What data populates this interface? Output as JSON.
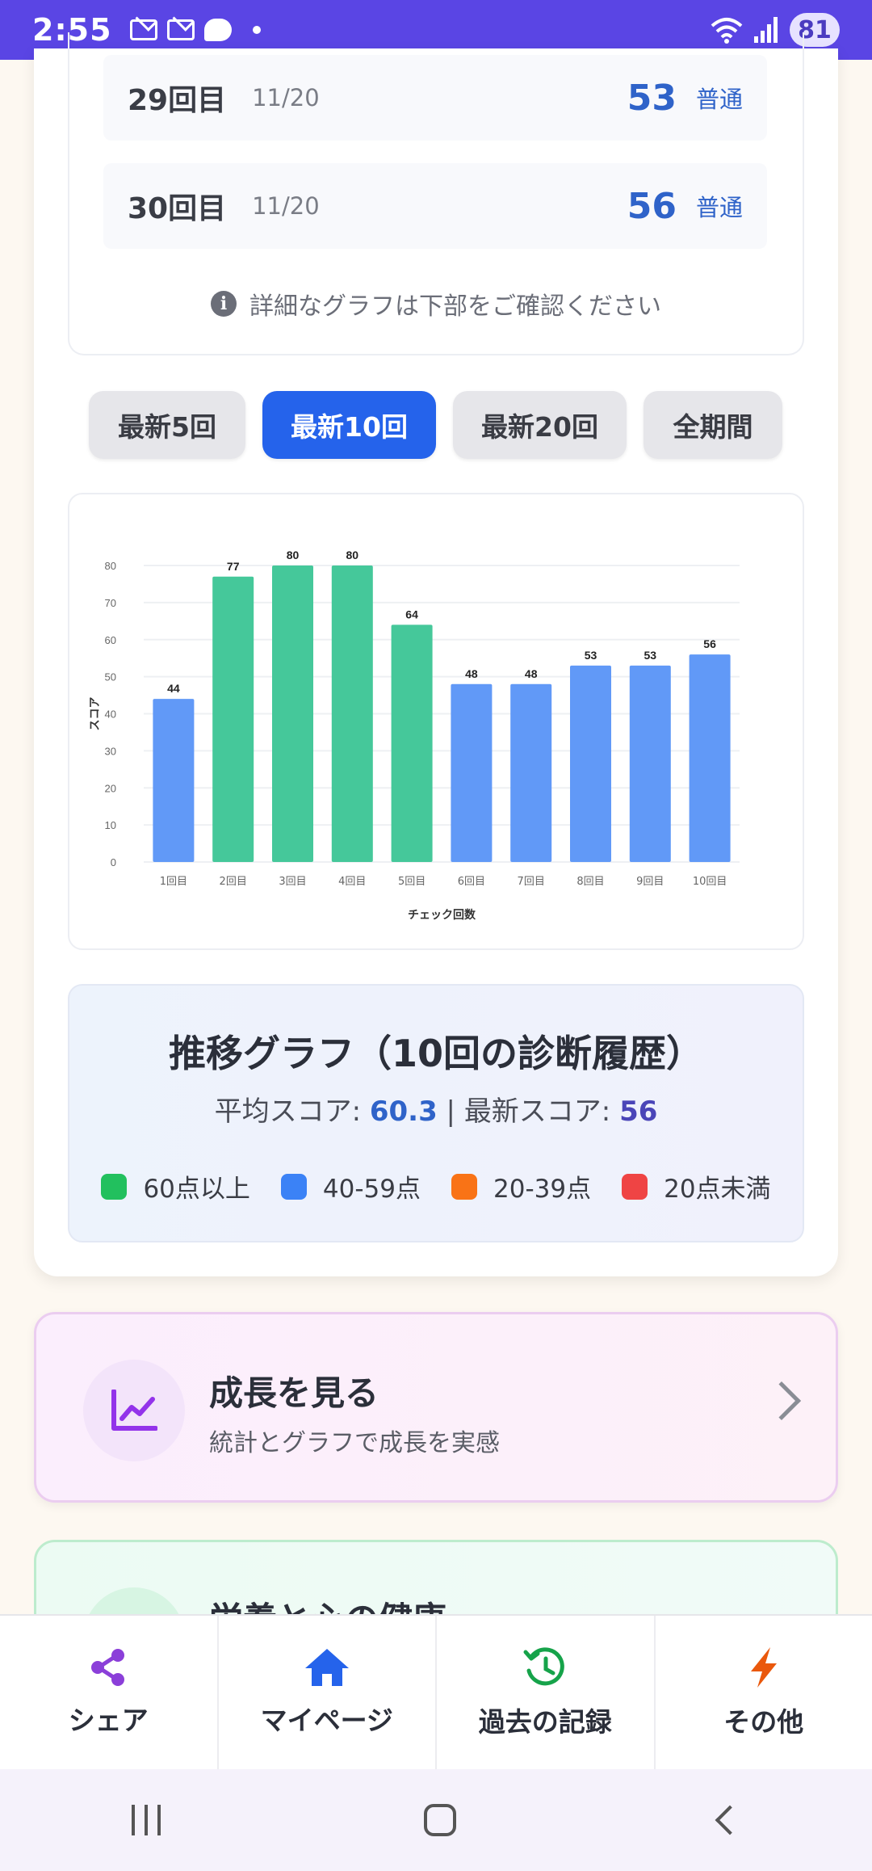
{
  "status_bar": {
    "time": "2:55",
    "battery": "81"
  },
  "history": {
    "rows": [
      {
        "num": "29回目",
        "date": "11/20",
        "score": "53",
        "level": "普通"
      },
      {
        "num": "30回目",
        "date": "11/20",
        "score": "56",
        "level": "普通"
      }
    ],
    "note": "詳細なグラフは下部をご確認ください"
  },
  "filters": [
    {
      "label": "最新5回",
      "active": false
    },
    {
      "label": "最新10回",
      "active": true
    },
    {
      "label": "最新20回",
      "active": false
    },
    {
      "label": "全期間",
      "active": false
    }
  ],
  "chart_data": {
    "type": "bar",
    "categories": [
      "1回目",
      "2回目",
      "3回目",
      "4回目",
      "5回目",
      "6回目",
      "7回目",
      "8回目",
      "9回目",
      "10回目"
    ],
    "values": [
      44,
      77,
      80,
      80,
      64,
      48,
      48,
      53,
      53,
      56
    ],
    "xlabel": "チェック回数",
    "ylabel": "スコア",
    "ylim": [
      0,
      80
    ],
    "yticks": [
      0,
      10,
      20,
      30,
      40,
      50,
      60,
      70,
      80
    ],
    "grid": true,
    "colors": {
      "high": "#45c89a",
      "mid": "#6199f7"
    }
  },
  "summary": {
    "title": "推移グラフ（10回の診断履歴）",
    "avg_label": "平均スコア: ",
    "avg_value": "60.3",
    "separator": " | ",
    "latest_label": "最新スコア: ",
    "latest_value": "56",
    "legend": [
      {
        "label": "60点以上",
        "color": "#22c05e"
      },
      {
        "label": "40-59点",
        "color": "#3b82f6"
      },
      {
        "label": "20-39点",
        "color": "#f97316"
      },
      {
        "label": "20点未満",
        "color": "#ef4444"
      }
    ]
  },
  "growth_card": {
    "title": "成長を見る",
    "subtitle": "統計とグラフで成長を実感",
    "icon": "chart-line-icon"
  },
  "nutrition_card": {
    "title": "栄養と心の健康"
  },
  "bottom_nav": [
    {
      "label": "シェア",
      "icon": "share-icon",
      "color": "#8b3fd9"
    },
    {
      "label": "マイページ",
      "icon": "home-icon",
      "color": "#2563eb"
    },
    {
      "label": "過去の記録",
      "icon": "history-icon",
      "color": "#16a34a"
    },
    {
      "label": "その他",
      "icon": "bolt-icon",
      "color": "#ea580c"
    }
  ]
}
